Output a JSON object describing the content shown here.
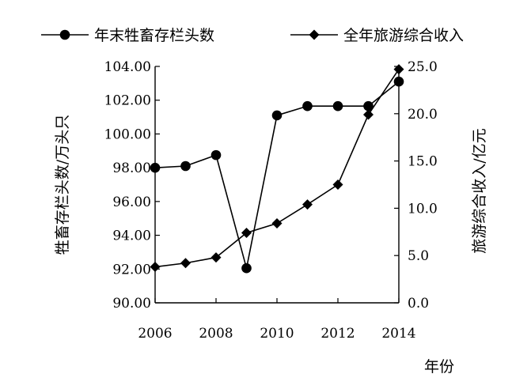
{
  "chart_data": {
    "type": "line",
    "x": [
      2006,
      2007,
      2008,
      2009,
      2010,
      2011,
      2012,
      2013,
      2014
    ],
    "x_ticks": [
      "2006",
      "2008",
      "2010",
      "2012",
      "2014"
    ],
    "xlabel": "年份",
    "ylabel_left": "牲畜存栏头数/万头只",
    "ylabel_right": "旅游综合收入/亿元",
    "ylim_left": [
      90,
      104
    ],
    "ylim_right": [
      0,
      25
    ],
    "yticks_left": [
      "90.00",
      "92.00",
      "94.00",
      "96.00",
      "98.00",
      "100.00",
      "102.00",
      "104.00"
    ],
    "yticks_right": [
      "0.0",
      "5.0",
      "10.0",
      "15.0",
      "20.0",
      "25.0"
    ],
    "legend_position": "top",
    "grid": false,
    "series": [
      {
        "name": "年末牲畜存栏头数",
        "axis": "left",
        "marker": "circle",
        "values": [
          98.0,
          98.1,
          98.75,
          92.05,
          101.1,
          101.65,
          101.65,
          101.65,
          103.1
        ]
      },
      {
        "name": "全年旅游综合收入",
        "axis": "right",
        "marker": "diamond",
        "values": [
          3.8,
          4.2,
          4.8,
          7.4,
          8.4,
          10.4,
          12.5,
          19.9,
          24.7
        ]
      }
    ]
  }
}
